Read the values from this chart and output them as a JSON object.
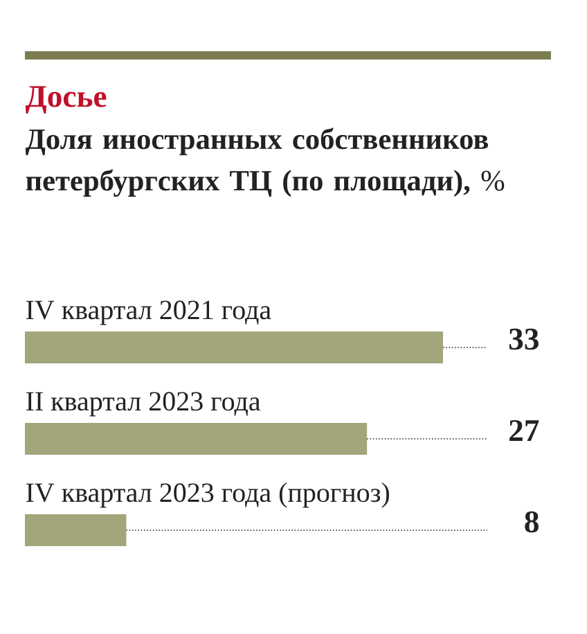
{
  "chart_data": {
    "type": "bar",
    "orientation": "horizontal",
    "title": "Досье",
    "subtitle": "**Доля иностранных собственников петербургских ТЦ (по площади),** %",
    "categories": [
      "IV квартал 2021 года",
      "II квартал 2023 года",
      "IV квартал 2023 года (прогноз)"
    ],
    "values": [
      33,
      27,
      8
    ],
    "color": "#a3a57a",
    "data_labels": true
  }
}
